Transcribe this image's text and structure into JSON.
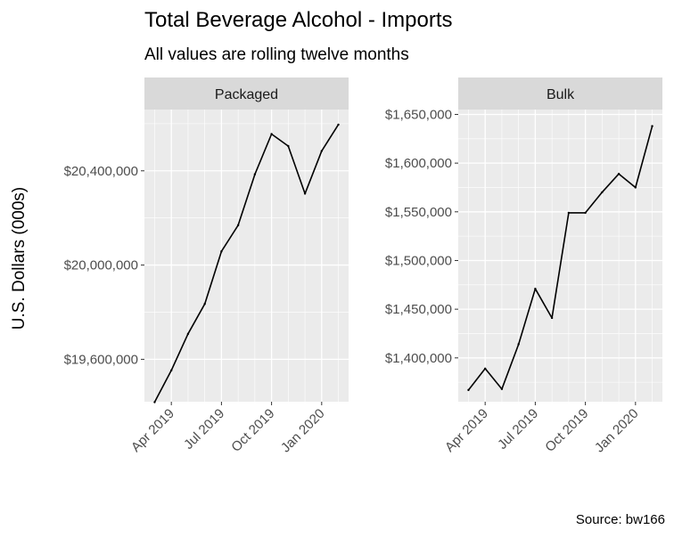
{
  "chart_data": {
    "type": "line",
    "title": "Total Beverage Alcohol - Imports",
    "subtitle": "All values are rolling twelve months",
    "ylabel": "U.S. Dollars (000s)",
    "caption": "Source: bw166",
    "x": [
      "2019-03",
      "2019-04",
      "2019-05",
      "2019-06",
      "2019-07",
      "2019-08",
      "2019-09",
      "2019-10",
      "2019-11",
      "2019-12",
      "2020-01",
      "2020-02"
    ],
    "x_ticks": [
      {
        "value": "2019-04",
        "label": "Apr 2019"
      },
      {
        "value": "2019-07",
        "label": "Jul 2019"
      },
      {
        "value": "2019-10",
        "label": "Oct 2019"
      },
      {
        "value": "2020-01",
        "label": "Jan 2020"
      }
    ],
    "panels": [
      {
        "name": "Packaged",
        "ylim": [
          19420000,
          20660000
        ],
        "y_ticks": [
          {
            "value": 19600000,
            "label": "$19,600,000"
          },
          {
            "value": 20000000,
            "label": "$20,000,000"
          },
          {
            "value": 20400000,
            "label": "$20,400,000"
          }
        ],
        "values": [
          19418000,
          19553000,
          19708000,
          19835000,
          20058000,
          20169000,
          20385000,
          20556000,
          20505000,
          20303000,
          20484000,
          20596000
        ]
      },
      {
        "name": "Bulk",
        "ylim": [
          1355000,
          1655000
        ],
        "y_ticks": [
          {
            "value": 1400000,
            "label": "$1,400,000"
          },
          {
            "value": 1450000,
            "label": "$1,450,000"
          },
          {
            "value": 1500000,
            "label": "$1,500,000"
          },
          {
            "value": 1550000,
            "label": "$1,550,000"
          },
          {
            "value": 1600000,
            "label": "$1,600,000"
          },
          {
            "value": 1650000,
            "label": "$1,650,000"
          }
        ],
        "values": [
          1367000,
          1389000,
          1368000,
          1414000,
          1471000,
          1441000,
          1549000,
          1549000,
          1570000,
          1589000,
          1575000,
          1638000
        ]
      }
    ],
    "grid": true,
    "colors": {
      "panel_bg": "#ebebeb",
      "strip_bg": "#d9d9d9",
      "grid": "#ffffff",
      "line": "#000000",
      "tick_text": "#4d4d4d"
    }
  }
}
